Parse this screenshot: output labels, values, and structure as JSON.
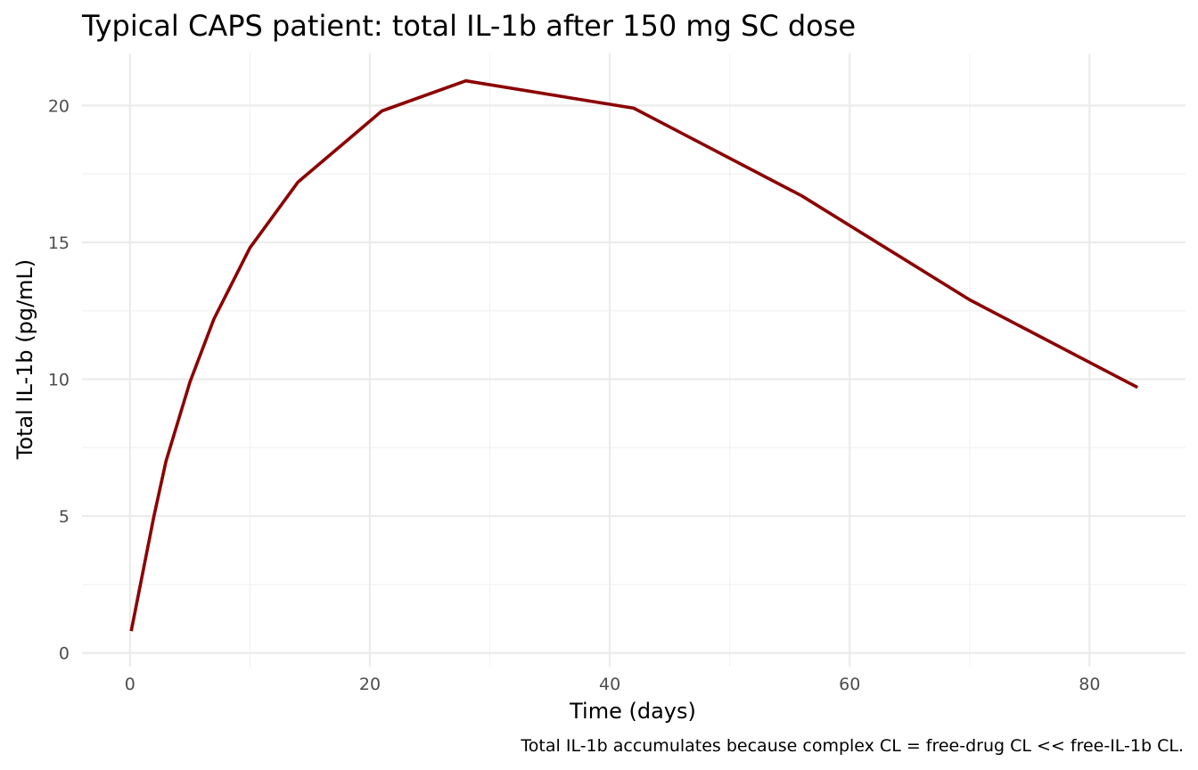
{
  "chart_data": {
    "type": "line",
    "title": "Typical CAPS patient: total IL-1b after 150 mg SC dose",
    "xlabel": "Time (days)",
    "ylabel": "Total IL-1b (pg/mL)",
    "caption": "Total IL-1b accumulates because complex CL = free-drug CL << free-IL-1b CL.",
    "xlim": [
      -4,
      88
    ],
    "ylim": [
      -0.5,
      21.9
    ],
    "x_ticks": [
      0,
      20,
      40,
      60,
      80
    ],
    "y_ticks": [
      0,
      5,
      10,
      15,
      20
    ],
    "x_tick_labels": [
      "0",
      "20",
      "40",
      "60",
      "80"
    ],
    "y_tick_labels": [
      "0",
      "5",
      "10",
      "15",
      "20"
    ],
    "grid": true,
    "line_color": "#8b0000",
    "series": [
      {
        "x": [
          0.1,
          2,
          3,
          5,
          7,
          10,
          14,
          21,
          28,
          42,
          56,
          70,
          84
        ],
        "y": [
          0.8,
          5.0,
          7.0,
          9.9,
          12.2,
          14.8,
          17.2,
          19.8,
          20.9,
          19.9,
          16.7,
          12.9,
          9.7
        ]
      }
    ]
  }
}
